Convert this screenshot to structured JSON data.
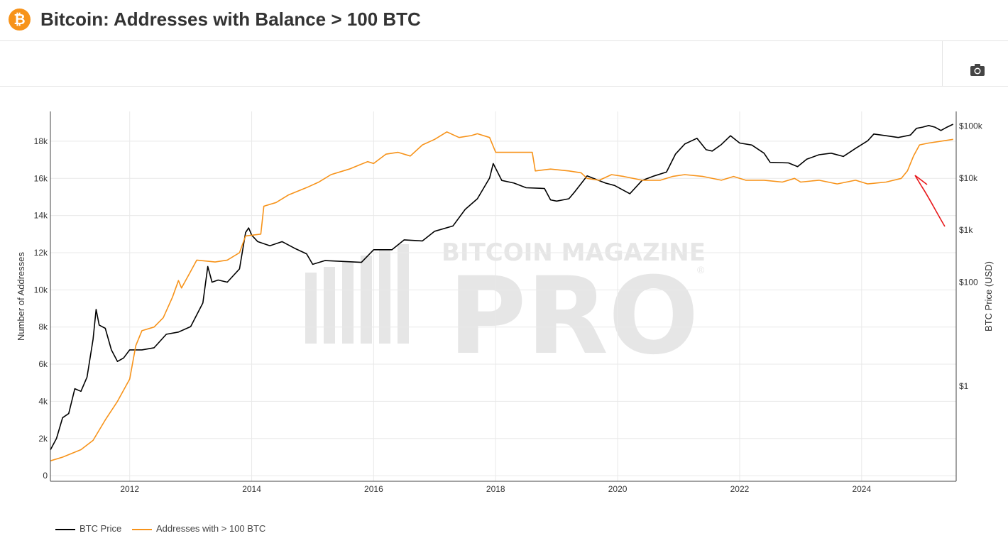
{
  "header": {
    "logo_glyph": "₿",
    "title": "Bitcoin: Addresses with Balance > 100 BTC"
  },
  "toolbar": {
    "camera_icon": "camera-icon"
  },
  "watermark": {
    "line1": "BITCOIN MAGAZINE",
    "line2": "PRO",
    "mark": "®"
  },
  "colors": {
    "price": "#000000",
    "addresses": "#f7931a",
    "annotation": "#e8191c",
    "grid": "#e9e9e9"
  },
  "chart_data": {
    "type": "line",
    "title": "Bitcoin: Addresses with Balance > 100 BTC",
    "ylabel": "Number of Addresses",
    "y2label": "BTC Price (USD)",
    "xlim": [
      2010.7,
      2025.55
    ],
    "ylim": [
      -300,
      19600
    ],
    "y2_scale": "log",
    "y2lim": [
      0.015,
      190000
    ],
    "x_ticks": [
      "2012",
      "2014",
      "2016",
      "2018",
      "2020",
      "2022",
      "2024"
    ],
    "y_ticks": [
      {
        "v": 0,
        "label": "0"
      },
      {
        "v": 2000,
        "label": "2k"
      },
      {
        "v": 4000,
        "label": "4k"
      },
      {
        "v": 6000,
        "label": "6k"
      },
      {
        "v": 8000,
        "label": "8k"
      },
      {
        "v": 10000,
        "label": "10k"
      },
      {
        "v": 12000,
        "label": "12k"
      },
      {
        "v": 14000,
        "label": "14k"
      },
      {
        "v": 16000,
        "label": "16k"
      },
      {
        "v": 18000,
        "label": "18k"
      }
    ],
    "y2_ticks": [
      {
        "v": 1,
        "label": "$1"
      },
      {
        "v": 100,
        "label": "$100"
      },
      {
        "v": 1000,
        "label": "$1k"
      },
      {
        "v": 10000,
        "label": "$10k"
      },
      {
        "v": 100000,
        "label": "$100k"
      }
    ],
    "series": [
      {
        "name": "BTC Price",
        "axis": "y2",
        "points": [
          [
            2010.7,
            0.06
          ],
          [
            2010.8,
            0.1
          ],
          [
            2010.9,
            0.25
          ],
          [
            2011.0,
            0.3
          ],
          [
            2011.1,
            0.9
          ],
          [
            2011.2,
            0.8
          ],
          [
            2011.3,
            1.5
          ],
          [
            2011.4,
            8
          ],
          [
            2011.45,
            30
          ],
          [
            2011.5,
            15
          ],
          [
            2011.6,
            13
          ],
          [
            2011.7,
            5
          ],
          [
            2011.8,
            3
          ],
          [
            2011.9,
            3.5
          ],
          [
            2012.0,
            5
          ],
          [
            2012.2,
            5
          ],
          [
            2012.4,
            5.5
          ],
          [
            2012.6,
            10
          ],
          [
            2012.8,
            11
          ],
          [
            2013.0,
            14
          ],
          [
            2013.2,
            40
          ],
          [
            2013.28,
            200
          ],
          [
            2013.35,
            100
          ],
          [
            2013.45,
            110
          ],
          [
            2013.6,
            100
          ],
          [
            2013.8,
            180
          ],
          [
            2013.9,
            900
          ],
          [
            2013.95,
            1100
          ],
          [
            2014.0,
            800
          ],
          [
            2014.1,
            600
          ],
          [
            2014.3,
            500
          ],
          [
            2014.5,
            600
          ],
          [
            2014.7,
            450
          ],
          [
            2014.9,
            350
          ],
          [
            2015.0,
            220
          ],
          [
            2015.2,
            260
          ],
          [
            2015.5,
            250
          ],
          [
            2015.8,
            240
          ],
          [
            2016.0,
            420
          ],
          [
            2016.3,
            420
          ],
          [
            2016.5,
            650
          ],
          [
            2016.8,
            620
          ],
          [
            2017.0,
            950
          ],
          [
            2017.3,
            1200
          ],
          [
            2017.5,
            2500
          ],
          [
            2017.7,
            4000
          ],
          [
            2017.9,
            10000
          ],
          [
            2017.96,
            19000
          ],
          [
            2018.1,
            9000
          ],
          [
            2018.3,
            8000
          ],
          [
            2018.5,
            6500
          ],
          [
            2018.8,
            6300
          ],
          [
            2018.9,
            3800
          ],
          [
            2019.0,
            3600
          ],
          [
            2019.2,
            4000
          ],
          [
            2019.3,
            5500
          ],
          [
            2019.5,
            11000
          ],
          [
            2019.8,
            8000
          ],
          [
            2019.95,
            7200
          ],
          [
            2020.2,
            5000
          ],
          [
            2020.4,
            9000
          ],
          [
            2020.6,
            11000
          ],
          [
            2020.8,
            13000
          ],
          [
            2020.95,
            29000
          ],
          [
            2021.1,
            45000
          ],
          [
            2021.3,
            58000
          ],
          [
            2021.45,
            35000
          ],
          [
            2021.55,
            33000
          ],
          [
            2021.7,
            44000
          ],
          [
            2021.85,
            65000
          ],
          [
            2022.0,
            47000
          ],
          [
            2022.2,
            43000
          ],
          [
            2022.4,
            30000
          ],
          [
            2022.5,
            20000
          ],
          [
            2022.8,
            19500
          ],
          [
            2022.95,
            16500
          ],
          [
            2023.1,
            23000
          ],
          [
            2023.3,
            28000
          ],
          [
            2023.5,
            30000
          ],
          [
            2023.7,
            26000
          ],
          [
            2023.9,
            37000
          ],
          [
            2024.1,
            52000
          ],
          [
            2024.2,
            70000
          ],
          [
            2024.4,
            65000
          ],
          [
            2024.6,
            60000
          ],
          [
            2024.8,
            67000
          ],
          [
            2024.9,
            90000
          ],
          [
            2025.0,
            95000
          ],
          [
            2025.1,
            102000
          ],
          [
            2025.2,
            95000
          ],
          [
            2025.3,
            82000
          ],
          [
            2025.4,
            95000
          ],
          [
            2025.5,
            108000
          ]
        ]
      },
      {
        "name": "Addresses with > 100 BTC",
        "axis": "y",
        "points": [
          [
            2010.7,
            800
          ],
          [
            2010.9,
            1000
          ],
          [
            2011.2,
            1400
          ],
          [
            2011.4,
            1900
          ],
          [
            2011.6,
            3000
          ],
          [
            2011.8,
            4000
          ],
          [
            2012.0,
            5200
          ],
          [
            2012.1,
            7000
          ],
          [
            2012.2,
            7800
          ],
          [
            2012.4,
            8000
          ],
          [
            2012.55,
            8500
          ],
          [
            2012.7,
            9600
          ],
          [
            2012.8,
            10500
          ],
          [
            2012.85,
            10100
          ],
          [
            2013.0,
            11000
          ],
          [
            2013.1,
            11600
          ],
          [
            2013.4,
            11500
          ],
          [
            2013.6,
            11600
          ],
          [
            2013.8,
            12000
          ],
          [
            2013.9,
            12900
          ],
          [
            2014.15,
            13000
          ],
          [
            2014.2,
            14500
          ],
          [
            2014.4,
            14700
          ],
          [
            2014.6,
            15100
          ],
          [
            2014.9,
            15500
          ],
          [
            2015.1,
            15800
          ],
          [
            2015.3,
            16200
          ],
          [
            2015.6,
            16500
          ],
          [
            2015.9,
            16900
          ],
          [
            2016.0,
            16800
          ],
          [
            2016.2,
            17300
          ],
          [
            2016.4,
            17400
          ],
          [
            2016.6,
            17200
          ],
          [
            2016.8,
            17800
          ],
          [
            2017.0,
            18100
          ],
          [
            2017.2,
            18500
          ],
          [
            2017.4,
            18200
          ],
          [
            2017.6,
            18300
          ],
          [
            2017.7,
            18400
          ],
          [
            2017.9,
            18200
          ],
          [
            2018.0,
            17400
          ],
          [
            2018.3,
            17400
          ],
          [
            2018.6,
            17400
          ],
          [
            2018.65,
            16400
          ],
          [
            2018.9,
            16500
          ],
          [
            2019.2,
            16400
          ],
          [
            2019.4,
            16300
          ],
          [
            2019.5,
            16000
          ],
          [
            2019.7,
            15900
          ],
          [
            2019.9,
            16200
          ],
          [
            2020.1,
            16100
          ],
          [
            2020.4,
            15900
          ],
          [
            2020.7,
            15900
          ],
          [
            2020.9,
            16100
          ],
          [
            2021.1,
            16200
          ],
          [
            2021.4,
            16100
          ],
          [
            2021.7,
            15900
          ],
          [
            2021.9,
            16100
          ],
          [
            2022.1,
            15900
          ],
          [
            2022.4,
            15900
          ],
          [
            2022.7,
            15800
          ],
          [
            2022.9,
            16000
          ],
          [
            2023.0,
            15800
          ],
          [
            2023.3,
            15900
          ],
          [
            2023.6,
            15700
          ],
          [
            2023.9,
            15900
          ],
          [
            2024.1,
            15700
          ],
          [
            2024.4,
            15800
          ],
          [
            2024.65,
            16000
          ],
          [
            2024.75,
            16400
          ],
          [
            2024.85,
            17200
          ],
          [
            2024.95,
            17800
          ],
          [
            2025.1,
            17900
          ],
          [
            2025.3,
            18000
          ],
          [
            2025.5,
            18100
          ]
        ]
      }
    ],
    "legend": {
      "position": "bottom-left",
      "entries": [
        "BTC Price",
        "Addresses with > 100 BTC"
      ]
    },
    "grid": true,
    "annotation": "hand-drawn red arrow pointing to the late-2024 rise in addresses"
  }
}
